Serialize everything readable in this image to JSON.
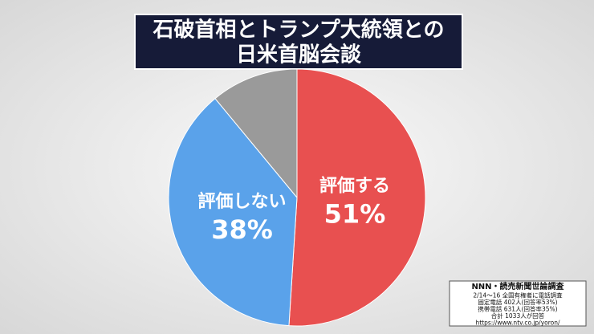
{
  "chart_data": {
    "type": "pie",
    "title": [
      "石破首相とトランプ大統領との",
      "日米首脳会談"
    ],
    "categories": [
      "評価する",
      "評価しない",
      null
    ],
    "values": [
      51,
      38,
      11
    ],
    "value_labels": [
      "51%",
      "38%",
      null
    ],
    "colors": [
      "#e85050",
      "#5aa2ea",
      "#9a9a9a"
    ],
    "source": [
      "NNN・読売新聞世論調査",
      "2/14〜16 全国有権者に電話調査",
      "固定電話 402人(回答率53%)",
      "携帯電話 631人(回答率35%)",
      "合計 1033人が回答",
      "https://www.ntv.co.jp/yoron/"
    ]
  }
}
